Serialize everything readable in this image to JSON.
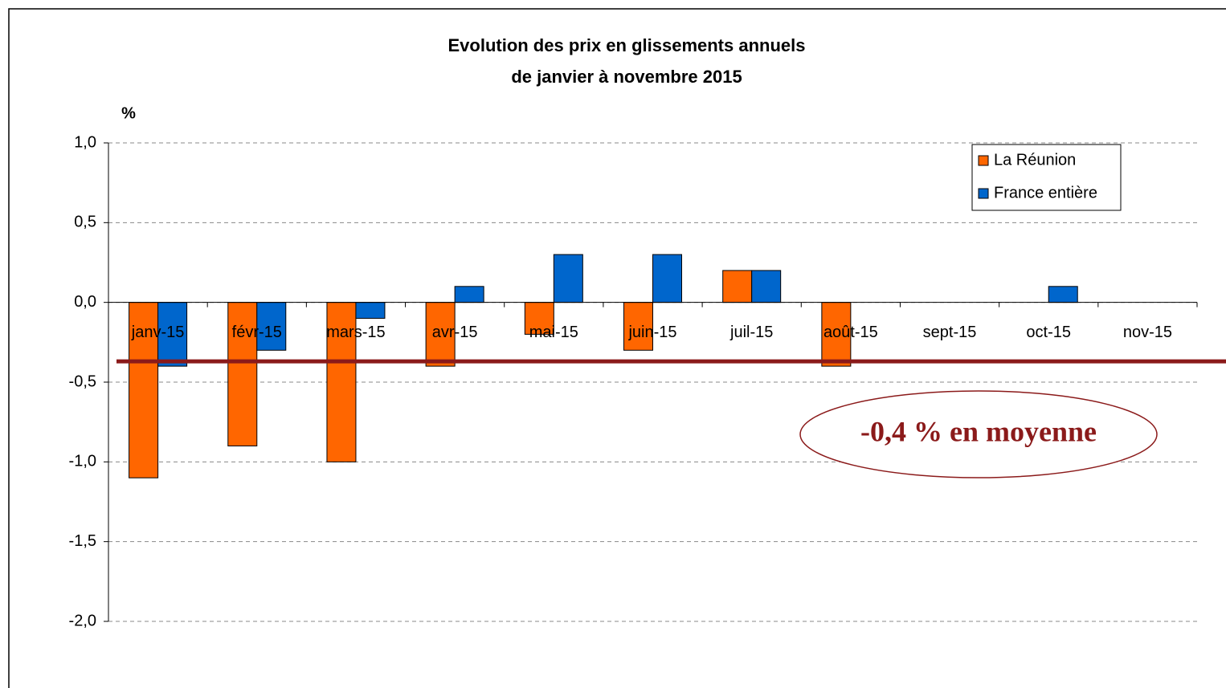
{
  "chart_data": {
    "type": "bar",
    "title": "Evolution des prix en glissements annuels",
    "subtitle": "de janvier à novembre 2015",
    "y_axis_label": "%",
    "categories": [
      "janv-15",
      "févr-15",
      "mars-15",
      "avr-15",
      "mai-15",
      "juin-15",
      "juil-15",
      "août-15",
      "sept-15",
      "oct-15",
      "nov-15"
    ],
    "series": [
      {
        "name": "La Réunion",
        "color": "#ff6600",
        "values": [
          -1.1,
          -0.9,
          -1.0,
          -0.4,
          -0.2,
          -0.3,
          0.2,
          -0.4,
          0,
          0,
          0
        ]
      },
      {
        "name": "France entière",
        "color": "#0066cc",
        "values": [
          -0.4,
          -0.3,
          -0.1,
          0.1,
          0.3,
          0.3,
          0.2,
          0,
          0,
          0.1,
          0
        ]
      }
    ],
    "ylim": [
      -2,
      1
    ],
    "yticks": [
      {
        "value": 1,
        "label": "1,0"
      },
      {
        "value": 0.5,
        "label": "0,5"
      },
      {
        "value": 0,
        "label": "0,0"
      },
      {
        "value": -0.5,
        "label": "-0,5"
      },
      {
        "value": -1,
        "label": "-1,0"
      },
      {
        "value": -1.5,
        "label": "-1,5"
      },
      {
        "value": -2,
        "label": "-2,0"
      }
    ],
    "grid": true,
    "legend": "top-right",
    "average_line": {
      "value": -0.37,
      "label": "-0,4 % en moyenne",
      "color": "#8b1a1a"
    }
  }
}
